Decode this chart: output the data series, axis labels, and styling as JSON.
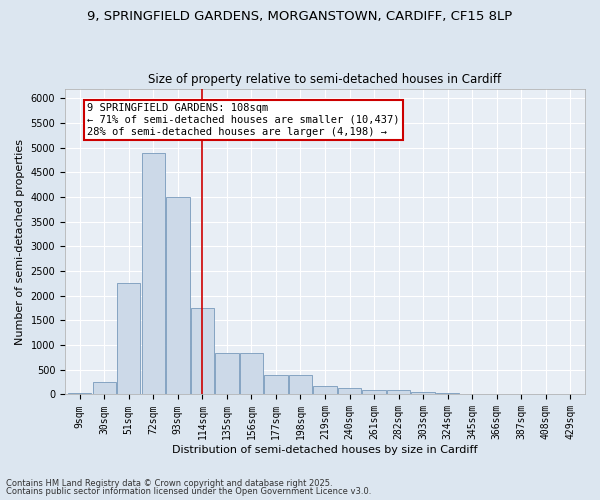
{
  "title1": "9, SPRINGFIELD GARDENS, MORGANSTOWN, CARDIFF, CF15 8LP",
  "title2": "Size of property relative to semi-detached houses in Cardiff",
  "xlabel": "Distribution of semi-detached houses by size in Cardiff",
  "ylabel": "Number of semi-detached properties",
  "categories": [
    "9sqm",
    "30sqm",
    "51sqm",
    "72sqm",
    "93sqm",
    "114sqm",
    "135sqm",
    "156sqm",
    "177sqm",
    "198sqm",
    "219sqm",
    "240sqm",
    "261sqm",
    "282sqm",
    "303sqm",
    "324sqm",
    "345sqm",
    "366sqm",
    "387sqm",
    "408sqm",
    "429sqm"
  ],
  "values": [
    30,
    250,
    2250,
    4900,
    4000,
    1750,
    850,
    850,
    400,
    400,
    175,
    130,
    90,
    90,
    55,
    25,
    15,
    10,
    5,
    3,
    2
  ],
  "bar_color": "#ccd9e8",
  "bar_edge_color": "#7799bb",
  "vline_x": 5.0,
  "vline_color": "#cc0000",
  "annotation_text": "9 SPRINGFIELD GARDENS: 108sqm\n← 71% of semi-detached houses are smaller (10,437)\n28% of semi-detached houses are larger (4,198) →",
  "annotation_box_color": "#ffffff",
  "annotation_box_edge": "#cc0000",
  "ylim": [
    0,
    6200
  ],
  "yticks": [
    0,
    500,
    1000,
    1500,
    2000,
    2500,
    3000,
    3500,
    4000,
    4500,
    5000,
    5500,
    6000
  ],
  "footer1": "Contains HM Land Registry data © Crown copyright and database right 2025.",
  "footer2": "Contains public sector information licensed under the Open Government Licence v3.0.",
  "bg_color": "#dce6f0",
  "plot_bg_color": "#e8eef5",
  "grid_color": "#ffffff",
  "title1_fontsize": 9.5,
  "title2_fontsize": 8.5,
  "tick_fontsize": 7,
  "label_fontsize": 8,
  "footer_fontsize": 6,
  "annot_fontsize": 7.5
}
